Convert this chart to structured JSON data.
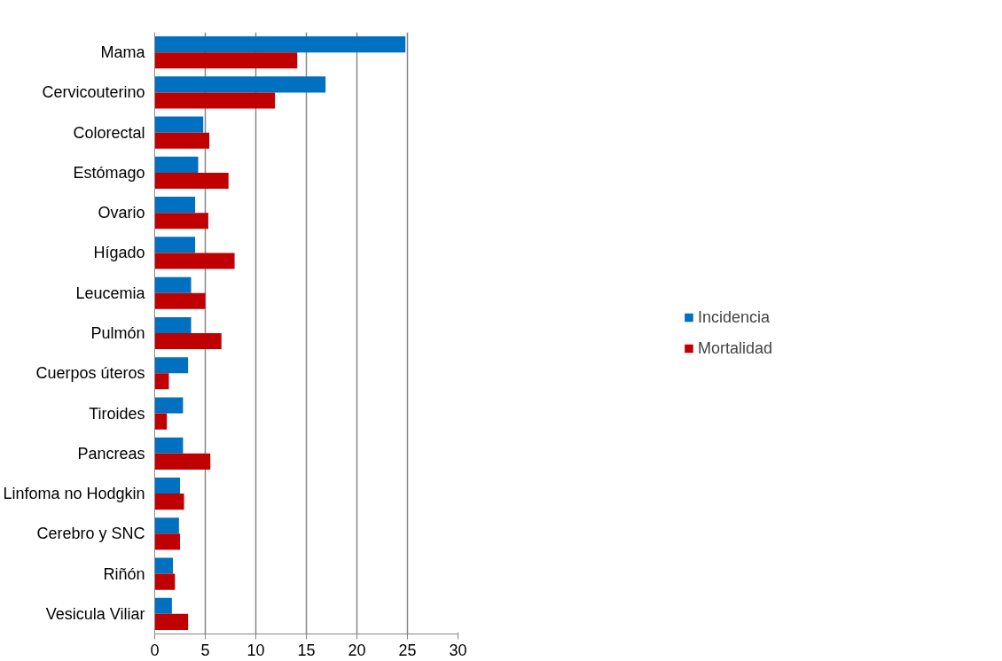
{
  "chart_data": {
    "type": "bar",
    "orientation": "horizontal",
    "categories": [
      "Mama",
      "Cervicouterino",
      "Colorectal",
      "Estómago",
      "Ovario",
      "Hígado",
      "Leucemia",
      "Pulmón",
      "Cuerpos úteros",
      "Tiroides",
      "Pancreas",
      "Linfoma no Hodgkin",
      "Cerebro y SNC",
      "Riñón",
      "Vesicula Viliar"
    ],
    "series": [
      {
        "name": "Incidencia",
        "color": "#0070c0",
        "values": [
          24.8,
          16.9,
          4.8,
          4.3,
          4.0,
          4.0,
          3.6,
          3.6,
          3.3,
          2.8,
          2.8,
          2.5,
          2.4,
          1.8,
          1.7
        ]
      },
      {
        "name": "Mortalidad",
        "color": "#c00000",
        "values": [
          14.1,
          11.9,
          5.4,
          7.3,
          5.3,
          7.9,
          5.0,
          6.6,
          1.4,
          1.2,
          5.5,
          2.9,
          2.5,
          2.0,
          3.3
        ]
      }
    ],
    "xlim": [
      0,
      30
    ],
    "xticks": [
      0,
      5,
      10,
      15,
      20,
      25,
      30
    ],
    "grid": "x",
    "legend": "right"
  }
}
